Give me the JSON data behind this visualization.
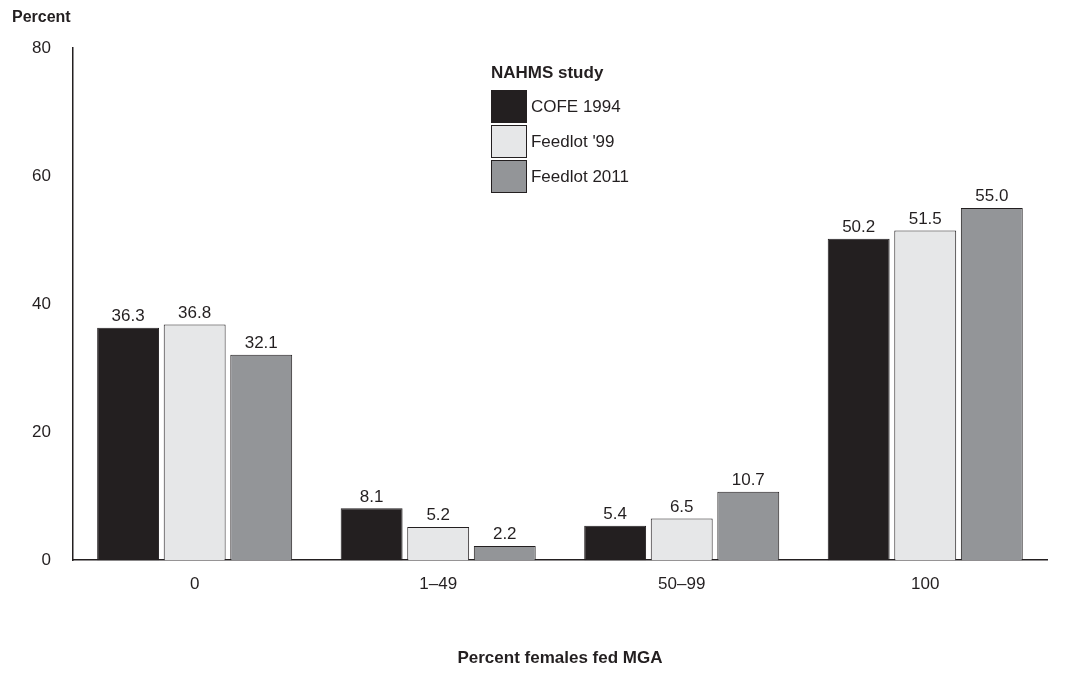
{
  "chart_data": {
    "type": "bar",
    "xlabel": "Percent females fed MGA",
    "ylabel": "Percent",
    "legend_title": "NAHMS study",
    "legend": "top",
    "categories": [
      "0",
      "1–49",
      "50–99",
      "100"
    ],
    "series": [
      {
        "name": "COFE 1994",
        "color": "#231f20",
        "values": [
          36.3,
          8.1,
          5.4,
          50.2
        ],
        "value_labels": [
          "36.3",
          "8.1",
          "5.4",
          "50.2"
        ]
      },
      {
        "name": "Feedlot '99",
        "color": "#e6e7e8",
        "values": [
          36.8,
          5.2,
          6.5,
          51.5
        ],
        "value_labels": [
          "36.8",
          "5.2",
          "6.5",
          "51.5"
        ]
      },
      {
        "name": "Feedlot 2011",
        "color": "#939598",
        "values": [
          32.1,
          2.2,
          10.7,
          55.0
        ],
        "value_labels": [
          "32.1",
          "2.2",
          "10.7",
          "55.0"
        ]
      }
    ],
    "ylim": [
      0,
      80
    ],
    "yticks": [
      0,
      20,
      40,
      60,
      80
    ],
    "grid": false
  }
}
